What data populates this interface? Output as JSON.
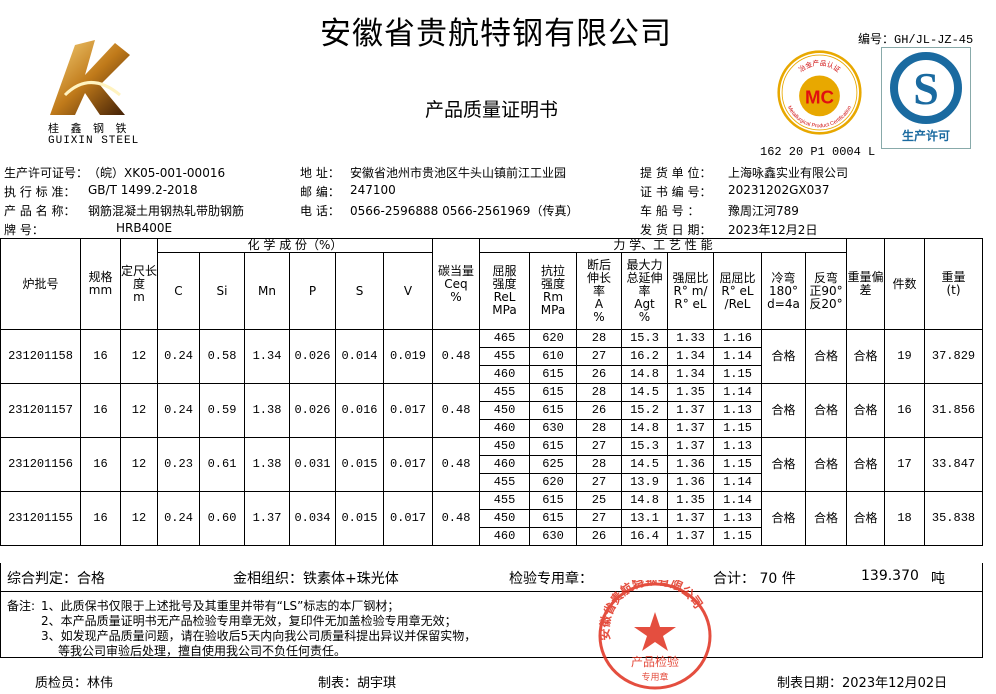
{
  "header": {
    "company": "安徽省贵航特钢有限公司",
    "doc_title": "产品质量证明书",
    "doc_number": "编号：GH/JL-JZ-45",
    "logo": {
      "name_cn": "桂 鑫 钢 铁",
      "name_en": "GUIXIN STEEL"
    },
    "mc_badge": {
      "ring_text_cn": "冶金产品认证",
      "ring_text_en": "Metallurgical Product Certification",
      "mark": "MC",
      "code": "162 20 P1 0004 L",
      "color": "#e8a800"
    },
    "qs_badge": {
      "mark": "S",
      "label": "生产许可",
      "color": "#1a6aa0"
    }
  },
  "info": {
    "left": [
      {
        "label": "生产许可证号：",
        "value": "（皖）XK05-001-00016"
      },
      {
        "label": "执 行 标 准：",
        "value": "GB/T 1499.2-2018"
      },
      {
        "label": "产 品 名 称：",
        "value": "钢筋混凝土用钢热轧带肋钢筋"
      },
      {
        "label": "牌       号：",
        "value": "HRB400E"
      }
    ],
    "middle": [
      {
        "label": "地   址：",
        "value": "安徽省池州市贵池区牛头山镇前江工业园"
      },
      {
        "label": "邮   编：",
        "value": "247100"
      },
      {
        "label": "电   话：",
        "value": "0566-2596888  0566-2561969（传真）"
      }
    ],
    "right": [
      {
        "label": "提 货 单 位：",
        "value": "上海咏鑫实业有限公司"
      },
      {
        "label": "证 书 编 号：",
        "value": "20231202GX037"
      },
      {
        "label": "车   船   号 ：",
        "value": "豫周江河789"
      },
      {
        "label": "发 货 日 期：",
        "value": "2023年12月2日"
      }
    ]
  },
  "table": {
    "headers": {
      "batch": "炉批号",
      "spec": "规格",
      "spec_unit": "mm",
      "length": "定尺长度",
      "length_unit": "m",
      "chem": "化 学 成 份（%）",
      "chem_cols": [
        "C",
        "Si",
        "Mn",
        "P",
        "S",
        "V"
      ],
      "ceq": "碳当量",
      "ceq_sym": "Ceq",
      "ceq_unit": "%",
      "mech": "力 学、工 艺 性 能",
      "mech_cols": [
        [
          "屈服",
          "强度",
          "ReL",
          "MPa"
        ],
        [
          "抗拉",
          "强度",
          "Rm",
          "MPa"
        ],
        [
          "断后",
          "伸长",
          "率",
          "A",
          "%"
        ],
        [
          "最大力",
          "总延伸",
          "率",
          "Agt",
          "%"
        ],
        [
          "强屈比",
          "R° m/",
          "R° eL"
        ],
        [
          "屈屈比",
          "R° eL",
          "/ReL"
        ],
        [
          "冷弯",
          "180°",
          "d=4a"
        ],
        [
          "反弯",
          "正90°",
          "反20°"
        ]
      ],
      "weight_dev": "重量偏差",
      "pieces": "件数",
      "weight": "重量",
      "weight_unit": "(t)"
    },
    "rows": [
      {
        "batch": "231201158",
        "spec": "16",
        "length": "12",
        "chem": [
          "0.24",
          "0.58",
          "1.34",
          "0.026",
          "0.014",
          "0.019"
        ],
        "ceq": "0.48",
        "mech": [
          [
            "465",
            "620",
            "28",
            "15.3",
            "1.33",
            "1.16"
          ],
          [
            "455",
            "610",
            "27",
            "16.2",
            "1.34",
            "1.14"
          ],
          [
            "460",
            "615",
            "26",
            "14.8",
            "1.34",
            "1.15"
          ]
        ],
        "cold_bend": "合格",
        "reverse_bend": "合格",
        "weight_dev": "合格",
        "pieces": "19",
        "weight": "37.829"
      },
      {
        "batch": "231201157",
        "spec": "16",
        "length": "12",
        "chem": [
          "0.24",
          "0.59",
          "1.38",
          "0.026",
          "0.016",
          "0.017"
        ],
        "ceq": "0.48",
        "mech": [
          [
            "455",
            "615",
            "28",
            "14.5",
            "1.35",
            "1.14"
          ],
          [
            "450",
            "615",
            "26",
            "15.2",
            "1.37",
            "1.13"
          ],
          [
            "460",
            "630",
            "28",
            "14.8",
            "1.37",
            "1.15"
          ]
        ],
        "cold_bend": "合格",
        "reverse_bend": "合格",
        "weight_dev": "合格",
        "pieces": "16",
        "weight": "31.856"
      },
      {
        "batch": "231201156",
        "spec": "16",
        "length": "12",
        "chem": [
          "0.23",
          "0.61",
          "1.38",
          "0.031",
          "0.015",
          "0.017"
        ],
        "ceq": "0.48",
        "mech": [
          [
            "450",
            "615",
            "27",
            "15.3",
            "1.37",
            "1.13"
          ],
          [
            "460",
            "625",
            "28",
            "14.5",
            "1.36",
            "1.15"
          ],
          [
            "455",
            "620",
            "27",
            "13.9",
            "1.36",
            "1.14"
          ]
        ],
        "cold_bend": "合格",
        "reverse_bend": "合格",
        "weight_dev": "合格",
        "pieces": "17",
        "weight": "33.847"
      },
      {
        "batch": "231201155",
        "spec": "16",
        "length": "12",
        "chem": [
          "0.24",
          "0.60",
          "1.37",
          "0.034",
          "0.015",
          "0.017"
        ],
        "ceq": "0.48",
        "mech": [
          [
            "455",
            "615",
            "25",
            "14.8",
            "1.35",
            "1.14"
          ],
          [
            "450",
            "615",
            "27",
            "13.1",
            "1.37",
            "1.13"
          ],
          [
            "460",
            "630",
            "26",
            "16.4",
            "1.37",
            "1.15"
          ]
        ],
        "cold_bend": "合格",
        "reverse_bend": "合格",
        "weight_dev": "合格",
        "pieces": "18",
        "weight": "35.838"
      }
    ]
  },
  "summary": {
    "judgement": "综合判定：合格",
    "structure": "金相组织：铁素体+珠光体",
    "stamp_label": "检验专用章：",
    "total_label": "合计：  70 件",
    "total_weight": "139.370",
    "weight_unit": "吨"
  },
  "notes": {
    "label": "备注:",
    "lines": [
      "1、此质保书仅限于上述批号及其重里并带有“LS”标志的本厂钢材；",
      "2、本产品质量证明书无产品检验专用章无效，复印件无加盖检验专用章无效；",
      "3、如发现产品质量问题，请在验收后5天内向我公司质量科提出异议并保留实物，",
      "等我公司审验后处理，擅自使用我公司不负任何责任。"
    ]
  },
  "stamp": {
    "ring_text": "安徽省贵航特钢有限公司",
    "center_text": "产品检验",
    "bottom_text": "专用章",
    "color": "#e0301e"
  },
  "footer": {
    "inspector": "质检员：林伟",
    "preparer": "制表：胡宇琪",
    "date": "制表日期：2023年12月02日"
  }
}
